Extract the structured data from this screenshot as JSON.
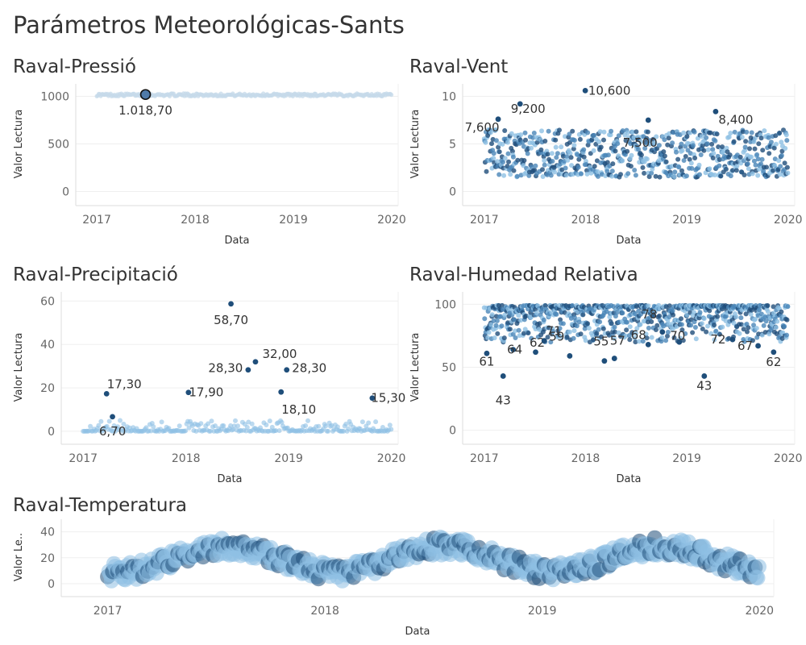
{
  "dashboard": {
    "title": "Parámetros Meteorológicas-Sants"
  },
  "colors": {
    "dark": "#1f4e7a",
    "mid": "#4a86b8",
    "light": "#8ec0e4",
    "pale": "#c6daea",
    "axis": "#dddddd",
    "grid": "#efefef"
  },
  "chart_data": [
    {
      "id": "pressio",
      "type": "scatter",
      "title": "Raval-Pressió",
      "xlabel": "Data",
      "ylabel": "Valor Lectura",
      "x_ticks": [
        "2017",
        "2018",
        "2019",
        "2020"
      ],
      "y_ticks": [
        0,
        500,
        1000
      ],
      "ylim": [
        -80,
        1080
      ],
      "xlim": [
        "2016-10-15",
        "2020-01-25"
      ],
      "series_range": {
        "start": "2017-01-01",
        "end": "2019-12-31",
        "min": 1000,
        "max": 1030,
        "pattern": "constant",
        "count": 300,
        "color": "pale"
      },
      "highlights": [
        {
          "x": "2017-07-01",
          "y": 1018.7,
          "label": "1.018,70"
        }
      ]
    },
    {
      "id": "vent",
      "type": "scatter",
      "title": "Raval-Vent",
      "xlabel": "Data",
      "ylabel": "Valor Lectura",
      "x_ticks": [
        "2017",
        "2018",
        "2019",
        "2020"
      ],
      "y_ticks": [
        0,
        5,
        10
      ],
      "ylim": [
        -0.8,
        10.8
      ],
      "xlim": [
        "2016-10-15",
        "2020-01-25"
      ],
      "series_range": {
        "start": "2017-01-01",
        "end": "2019-12-31",
        "min": 1.5,
        "max": 6.5,
        "pattern": "random",
        "count": 700,
        "color": "mid"
      },
      "highlights": [
        {
          "x": "2017-02-20",
          "y": 7.6,
          "label": "7,600"
        },
        {
          "x": "2017-05-10",
          "y": 9.2,
          "label": "9,200"
        },
        {
          "x": "2017-12-31",
          "y": 10.6,
          "label": "10,600"
        },
        {
          "x": "2018-08-15",
          "y": 7.5,
          "label": "7,500"
        },
        {
          "x": "2019-04-15",
          "y": 8.4,
          "label": "8,400"
        }
      ]
    },
    {
      "id": "precipitacio",
      "type": "scatter",
      "title": "Raval-Precipitació",
      "xlabel": "Data",
      "ylabel": "Valor Lectura",
      "x_ticks": [
        "2017",
        "2018",
        "2019",
        "2020"
      ],
      "y_ticks": [
        0,
        20,
        40,
        60
      ],
      "ylim": [
        -3,
        62
      ],
      "xlim": [
        "2016-10-15",
        "2020-01-25"
      ],
      "series_range": {
        "start": "2017-01-01",
        "end": "2019-12-31",
        "min": 0,
        "max": 5,
        "pattern": "low",
        "count": 260,
        "color": "light"
      },
      "highlights": [
        {
          "x": "2017-03-25",
          "y": 17.3,
          "label": "17,30"
        },
        {
          "x": "2017-04-15",
          "y": 6.7,
          "label": "6,70"
        },
        {
          "x": "2018-01-10",
          "y": 17.9,
          "label": "17,90"
        },
        {
          "x": "2018-06-10",
          "y": 58.7,
          "label": "58,70"
        },
        {
          "x": "2018-08-10",
          "y": 28.3,
          "label": "28,30"
        },
        {
          "x": "2018-09-05",
          "y": 32.0,
          "label": "32,00"
        },
        {
          "x": "2018-12-05",
          "y": 18.1,
          "label": "18,10"
        },
        {
          "x": "2018-12-25",
          "y": 28.3,
          "label": "28,30"
        },
        {
          "x": "2019-10-25",
          "y": 15.3,
          "label": "15,30"
        }
      ]
    },
    {
      "id": "humedad",
      "type": "scatter",
      "title": "Raval-Humedad Relativa",
      "xlabel": "Data",
      "ylabel": "Valor Lectura",
      "x_ticks": [
        "2017",
        "2018",
        "2019",
        "2020"
      ],
      "y_ticks": [
        0,
        50,
        100
      ],
      "ylim": [
        -6,
        106
      ],
      "xlim": [
        "2016-10-15",
        "2020-01-25"
      ],
      "series_range": {
        "start": "2017-01-01",
        "end": "2019-12-31",
        "min": 70,
        "max": 99,
        "pattern": "high",
        "count": 800,
        "color": "mid"
      },
      "highlights": [
        {
          "x": "2017-01-10",
          "y": 61,
          "label": "61"
        },
        {
          "x": "2017-03-10",
          "y": 43,
          "label": "43"
        },
        {
          "x": "2017-04-15",
          "y": 64,
          "label": "64"
        },
        {
          "x": "2017-07-05",
          "y": 62,
          "label": "62"
        },
        {
          "x": "2017-08-05",
          "y": 71,
          "label": "71"
        },
        {
          "x": "2017-11-05",
          "y": 59,
          "label": "59"
        },
        {
          "x": "2018-03-10",
          "y": 55,
          "label": "55"
        },
        {
          "x": "2018-04-15",
          "y": 57,
          "label": "57"
        },
        {
          "x": "2018-08-15",
          "y": 68,
          "label": "68"
        },
        {
          "x": "2018-10-05",
          "y": 78,
          "label": "78"
        },
        {
          "x": "2018-12-05",
          "y": 70,
          "label": "70"
        },
        {
          "x": "2019-03-05",
          "y": 43,
          "label": "43"
        },
        {
          "x": "2019-06-15",
          "y": 72,
          "label": "72"
        },
        {
          "x": "2019-09-15",
          "y": 67,
          "label": "67"
        },
        {
          "x": "2019-11-10",
          "y": 62,
          "label": "62"
        }
      ]
    },
    {
      "id": "temperatura",
      "type": "scatter",
      "title": "Raval-Temperatura",
      "xlabel": "Data",
      "ylabel": "Valor Le..",
      "x_ticks": [
        "2017",
        "2018",
        "2019",
        "2020"
      ],
      "y_ticks": [
        0,
        20,
        40
      ],
      "ylim": [
        -5,
        46
      ],
      "xlim": [
        "2016-10-15",
        "2020-01-25"
      ],
      "series_range": {
        "start": "2017-01-01",
        "end": "2019-12-31",
        "min": 2,
        "max": 40,
        "pattern": "seasonal",
        "count": 520,
        "color": "light"
      },
      "highlights": []
    }
  ]
}
